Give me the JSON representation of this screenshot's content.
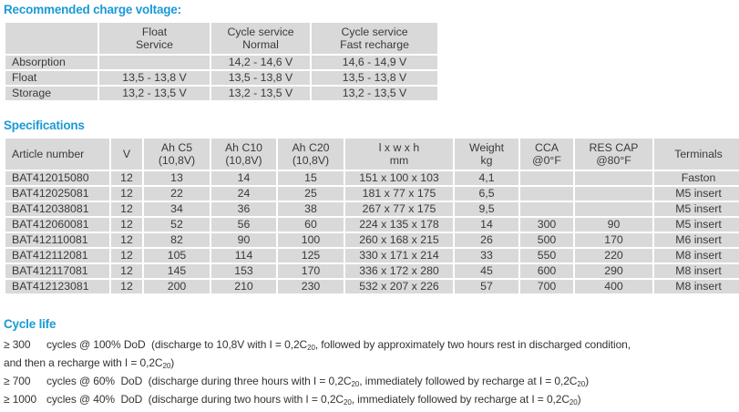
{
  "colors": {
    "accent_blue": "#1a9ad5",
    "table_cell_gray": "#d9d9d9",
    "text": "#3a3a3c"
  },
  "charge_voltage": {
    "heading": "Recommended charge voltage:",
    "columns": [
      {
        "line1": "",
        "line2": ""
      },
      {
        "line1": "Float",
        "line2": "Service"
      },
      {
        "line1": "Cycle service",
        "line2": "Normal"
      },
      {
        "line1": "Cycle service",
        "line2": "Fast recharge"
      }
    ],
    "rows": [
      {
        "label": "Absorption",
        "float_service": "",
        "cycle_normal": "14,2 - 14,6 V",
        "cycle_fast": "14,6 - 14,9 V"
      },
      {
        "label": "Float",
        "float_service": "13,5 - 13,8 V",
        "cycle_normal": "13,5 - 13,8 V",
        "cycle_fast": "13,5 - 13,8 V"
      },
      {
        "label": "Storage",
        "float_service": "13,2 - 13,5 V",
        "cycle_normal": "13,2 - 13,5 V",
        "cycle_fast": "13,2 - 13,5 V"
      }
    ]
  },
  "specifications": {
    "heading": "Specifications",
    "columns": [
      {
        "line1": "Article number"
      },
      {
        "line1": "V"
      },
      {
        "line1": "Ah C5",
        "line2": "(10,8V)"
      },
      {
        "line1": "Ah C10",
        "line2": "(10,8V)"
      },
      {
        "line1": "Ah C20",
        "line2": "(10,8V)"
      },
      {
        "line1": "l x w x h",
        "line2": "mm"
      },
      {
        "line1": "Weight",
        "line2": "kg"
      },
      {
        "line1": "CCA",
        "line2": "@0°F"
      },
      {
        "line1": "RES CAP",
        "line2": "@80°F"
      },
      {
        "line1": "Terminals"
      }
    ],
    "rows": [
      {
        "article": "BAT412015080",
        "v": "12",
        "ah_c5": "13",
        "ah_c10": "14",
        "ah_c20": "15",
        "dimensions": "151 x 100 x 103",
        "weight": "4,1",
        "cca": "",
        "res_cap": "",
        "terminals": "Faston"
      },
      {
        "article": "BAT412025081",
        "v": "12",
        "ah_c5": "22",
        "ah_c10": "24",
        "ah_c20": "25",
        "dimensions": "181 x 77 x 175",
        "weight": "6,5",
        "cca": "",
        "res_cap": "",
        "terminals": "M5 insert"
      },
      {
        "article": "BAT412038081",
        "v": "12",
        "ah_c5": "34",
        "ah_c10": "36",
        "ah_c20": "38",
        "dimensions": "267 x 77 x 175",
        "weight": "9,5",
        "cca": "",
        "res_cap": "",
        "terminals": "M5 insert"
      },
      {
        "article": "BAT412060081",
        "v": "12",
        "ah_c5": "52",
        "ah_c10": "56",
        "ah_c20": "60",
        "dimensions": "224 x 135 x 178",
        "weight": "14",
        "cca": "300",
        "res_cap": "90",
        "terminals": "M5 insert"
      },
      {
        "article": "BAT412110081",
        "v": "12",
        "ah_c5": "82",
        "ah_c10": "90",
        "ah_c20": "100",
        "dimensions": "260 x 168 x 215",
        "weight": "26",
        "cca": "500",
        "res_cap": "170",
        "terminals": "M6 insert"
      },
      {
        "article": "BAT412112081",
        "v": "12",
        "ah_c5": "105",
        "ah_c10": "114",
        "ah_c20": "125",
        "dimensions": "330 x 171 x 214",
        "weight": "33",
        "cca": "550",
        "res_cap": "220",
        "terminals": "M8 insert"
      },
      {
        "article": "BAT412117081",
        "v": "12",
        "ah_c5": "145",
        "ah_c10": "153",
        "ah_c20": "170",
        "dimensions": "336 x 172 x 280",
        "weight": "45",
        "cca": "600",
        "res_cap": "290",
        "terminals": "M8 insert"
      },
      {
        "article": "BAT412123081",
        "v": "12",
        "ah_c5": "200",
        "ah_c10": "210",
        "ah_c20": "230",
        "dimensions": "532 x 207 x 226",
        "weight": "57",
        "cca": "700",
        "res_cap": "400",
        "terminals": "M8 insert"
      }
    ]
  },
  "cycle_life": {
    "heading": "Cycle life",
    "lines": [
      {
        "prefix": "≥ 300",
        "segments": [
          {
            "t": "cycles @ 100% DoD  (discharge to 10,8V with I = 0,2C"
          },
          {
            "sub": "20"
          },
          {
            "t": ", followed by approximately two hours rest in discharged condition,"
          }
        ]
      },
      {
        "prefix": "",
        "segments": [
          {
            "t": "and then a recharge with I = 0,2C"
          },
          {
            "sub": "20"
          },
          {
            "t": ")"
          }
        ]
      },
      {
        "prefix": "≥ 700",
        "segments": [
          {
            "t": "cycles @ 60%  DoD  (discharge during three hours with I = 0,2C"
          },
          {
            "sub": "20"
          },
          {
            "t": ", immediately followed by recharge at I = 0,2C"
          },
          {
            "sub": "20"
          },
          {
            "t": ")"
          }
        ]
      },
      {
        "prefix": "≥ 1000",
        "segments": [
          {
            "t": "cycles @ 40%  DoD  (discharge during two hours with I = 0,2C"
          },
          {
            "sub": "20"
          },
          {
            "t": ", immediately followed by recharge at I = 0,2C"
          },
          {
            "sub": "20"
          },
          {
            "t": ")"
          }
        ]
      }
    ]
  }
}
